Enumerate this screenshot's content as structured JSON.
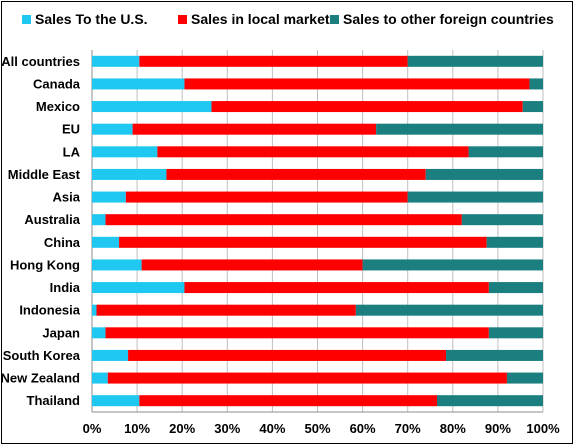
{
  "chart_data": {
    "type": "bar",
    "orientation": "horizontal",
    "stacked": "percent",
    "categories": [
      "All countries",
      "Canada",
      "Mexico",
      "EU",
      "LA",
      "Middle East",
      "Asia",
      "Australia",
      "China",
      "Hong Kong",
      "India",
      "Indonesia",
      "Japan",
      "South Korea",
      "New Zealand",
      "Thailand"
    ],
    "series": [
      {
        "name": "Sales To the U.S.",
        "color": "#1ec8f0",
        "values": [
          10.5,
          20.5,
          26.5,
          9,
          14.5,
          16.5,
          7.5,
          3,
          6,
          11,
          20.5,
          1,
          3,
          8,
          3.5,
          10.5
        ]
      },
      {
        "name": "Sales in local market",
        "color": "#ff0000",
        "values": [
          59.5,
          76.5,
          69,
          54,
          69,
          57.5,
          62.5,
          79,
          81.5,
          49,
          67.5,
          57.5,
          85,
          70.5,
          88.5,
          66
        ]
      },
      {
        "name": "Sales to other foreign countries",
        "color": "#1b7f7f",
        "values": [
          30,
          3,
          4.5,
          37,
          16.5,
          26,
          30,
          18,
          12.5,
          40,
          12,
          41.5,
          12,
          21.5,
          8,
          23.5
        ]
      }
    ],
    "xlim": [
      0,
      100
    ],
    "x_ticks": [
      "0%",
      "10%",
      "20%",
      "30%",
      "40%",
      "50%",
      "60%",
      "70%",
      "80%",
      "90%",
      "100%"
    ],
    "legend_position": "top",
    "grid": "vertical"
  }
}
